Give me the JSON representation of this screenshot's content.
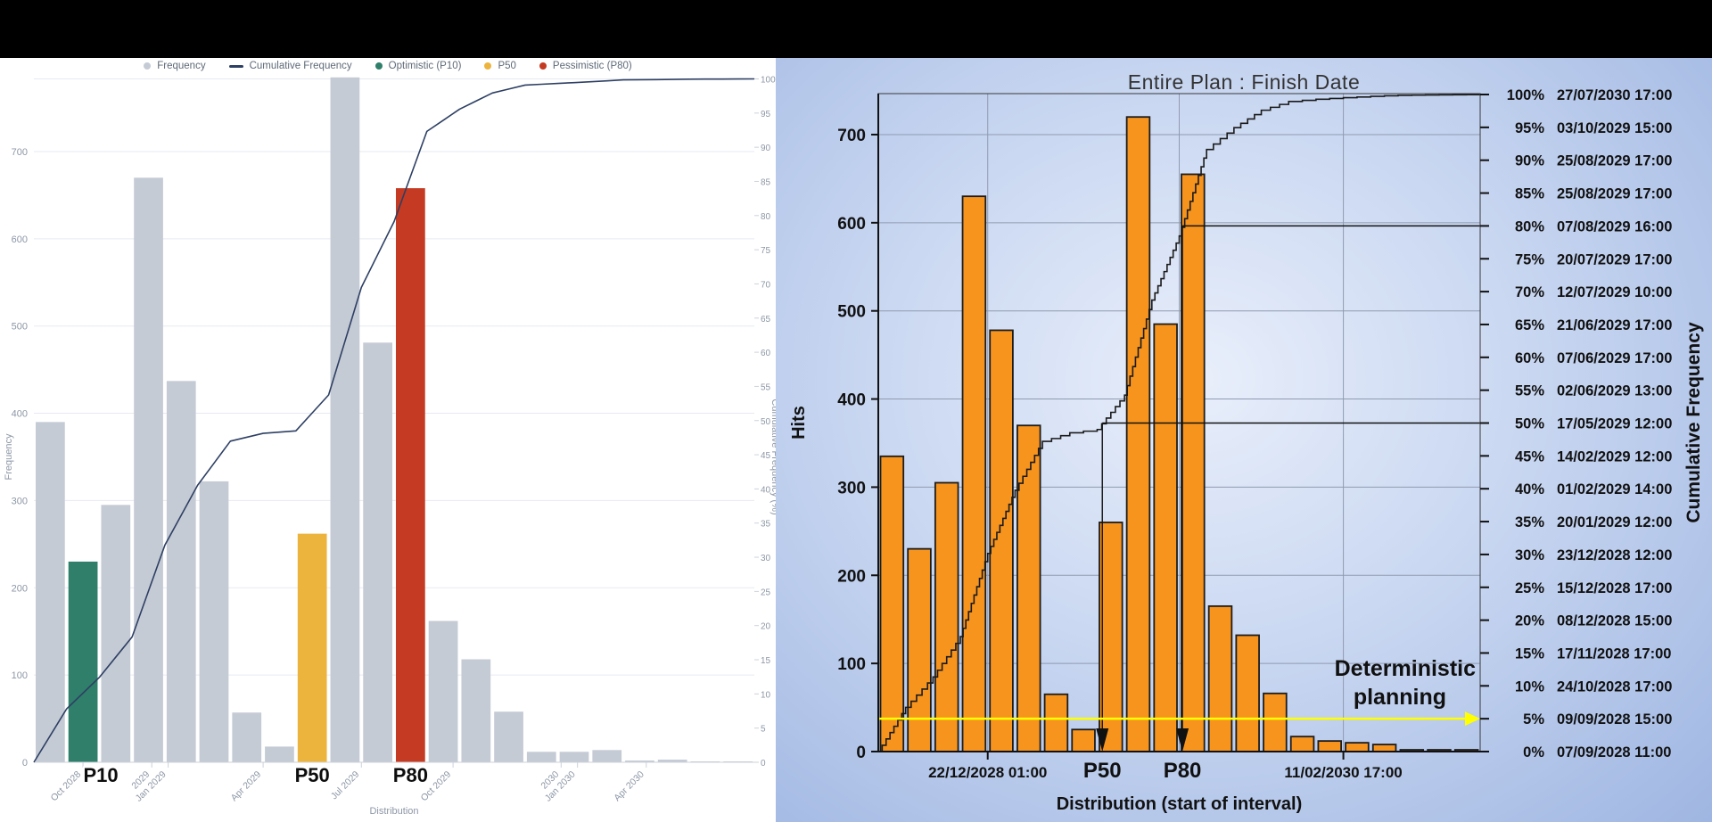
{
  "layout": {
    "top_bar_color": "#000000",
    "left_panel_bg": "#ffffff",
    "right_panel_bg_center": "#e9effb",
    "right_panel_bg_edge": "#9fb6e2"
  },
  "left_chart": {
    "legend": [
      {
        "label": "Frequency",
        "color": "#c5cbd5",
        "type": "dot"
      },
      {
        "label": "Cumulative Frequency",
        "color": "#2d3f63",
        "type": "line"
      },
      {
        "label": "Optimistic (P10)",
        "color": "#2f7f6b",
        "type": "dot"
      },
      {
        "label": "P50",
        "color": "#edb43d",
        "type": "dot"
      },
      {
        "label": "Pessimistic (P80)",
        "color": "#c53a22",
        "type": "dot"
      }
    ],
    "colors": {
      "grid": "#e7eaf0",
      "axis_text": "#8d97a6",
      "curve": "#2d3f63",
      "bar_default": "#c5cbd5",
      "p10": "#2f7f6b",
      "p50": "#edb43d",
      "p80": "#c53a22"
    }
  },
  "right_chart": {
    "title": "Entire Plan : Finish Date",
    "colors": {
      "bar": "#F7941E",
      "bar_stroke": "#1c1c1c",
      "curve": "#1a1a1a",
      "grid": "#8f9bb0",
      "accent_yellow": "#ffff00",
      "text": "#111111"
    }
  },
  "chart_data": [
    {
      "name": "left-distribution-histogram",
      "type": "bar",
      "title": "",
      "xlabel": "Distribution",
      "ylabel": "Frequency",
      "y2label": "Cumulative Frequency (%)",
      "ylim": [
        0,
        800
      ],
      "y_ticks": [
        0,
        100,
        200,
        300,
        400,
        500,
        600,
        700
      ],
      "y2_ticks": [
        0,
        5,
        10,
        15,
        20,
        25,
        30,
        35,
        40,
        45,
        50,
        55,
        60,
        65,
        70,
        75,
        80,
        85,
        90,
        95,
        100
      ],
      "values": [
        390,
        230,
        295,
        670,
        437,
        322,
        57,
        18,
        262,
        785,
        481,
        658,
        162,
        118,
        58,
        12,
        12,
        14,
        2,
        3,
        1,
        1
      ],
      "special_bars": [
        {
          "index": 1,
          "label": "P10",
          "color": "#2f7f6b"
        },
        {
          "index": 8,
          "label": "P50",
          "color": "#edb43d"
        },
        {
          "index": 11,
          "label": "P80",
          "color": "#c53a22"
        }
      ],
      "x_ticks": [
        {
          "pos": 1.5,
          "label": "Oct 2028"
        },
        {
          "pos": 3.6,
          "label": "2029"
        },
        {
          "pos": 4.1,
          "label": "Jan 2029"
        },
        {
          "pos": 7.0,
          "label": "Apr 2029"
        },
        {
          "pos": 10.0,
          "label": "Jul 2029"
        },
        {
          "pos": 12.8,
          "label": "Oct 2029"
        },
        {
          "pos": 16.1,
          "label": "2030"
        },
        {
          "pos": 16.6,
          "label": "Jan 2030"
        },
        {
          "pos": 18.7,
          "label": "Apr 2030"
        }
      ],
      "series": [
        {
          "name": "Frequency",
          "kind": "bars"
        },
        {
          "name": "Cumulative Frequency",
          "kind": "cumulative-percent-line"
        }
      ]
    },
    {
      "name": "entire-plan-finish-date",
      "type": "bar",
      "title": "Entire Plan : Finish Date",
      "xlabel": "Distribution (start of interval)",
      "ylabel": "Hits",
      "y2label": "Cumulative Frequency",
      "ylim": [
        0,
        780
      ],
      "y_ticks": [
        0,
        100,
        200,
        300,
        400,
        500,
        600,
        700
      ],
      "values": [
        335,
        230,
        305,
        630,
        478,
        370,
        65,
        25,
        260,
        720,
        485,
        655,
        165,
        132,
        66,
        17,
        12,
        10,
        8,
        2,
        2,
        2
      ],
      "x_ticks": [
        {
          "pos": 4.0,
          "label": "22/12/2028 01:00"
        },
        {
          "pos": 17.0,
          "label": "11/02/2030 17:00"
        }
      ],
      "percent_labels": [
        {
          "pct": 0,
          "date": "07/09/2028 11:00"
        },
        {
          "pct": 5,
          "date": "09/09/2028 15:00"
        },
        {
          "pct": 10,
          "date": "24/10/2028 17:00"
        },
        {
          "pct": 15,
          "date": "17/11/2028 17:00"
        },
        {
          "pct": 20,
          "date": "08/12/2028 15:00"
        },
        {
          "pct": 25,
          "date": "15/12/2028 17:00"
        },
        {
          "pct": 30,
          "date": "23/12/2028 12:00"
        },
        {
          "pct": 35,
          "date": "20/01/2029 12:00"
        },
        {
          "pct": 40,
          "date": "01/02/2029 14:00"
        },
        {
          "pct": 45,
          "date": "14/02/2029 12:00"
        },
        {
          "pct": 50,
          "date": "17/05/2029 12:00"
        },
        {
          "pct": 55,
          "date": "02/06/2029 13:00"
        },
        {
          "pct": 60,
          "date": "07/06/2029 17:00"
        },
        {
          "pct": 65,
          "date": "21/06/2029 17:00"
        },
        {
          "pct": 70,
          "date": "12/07/2029 10:00"
        },
        {
          "pct": 75,
          "date": "20/07/2029 17:00"
        },
        {
          "pct": 80,
          "date": "07/08/2029 16:00"
        },
        {
          "pct": 85,
          "date": "25/08/2029 17:00"
        },
        {
          "pct": 90,
          "date": "25/08/2029 17:00"
        },
        {
          "pct": 95,
          "date": "03/10/2029 15:00"
        },
        {
          "pct": 100,
          "date": "27/07/2030 17:00"
        }
      ],
      "p_markers": [
        {
          "label": "P50",
          "pct": 50
        },
        {
          "label": "P80",
          "pct": 80
        }
      ],
      "deterministic": {
        "line1": "Deterministic",
        "line2": "planning",
        "pct": 5
      },
      "series": [
        {
          "name": "Hits",
          "kind": "bars"
        },
        {
          "name": "Cumulative Frequency",
          "kind": "cumulative-percent-staircase"
        }
      ]
    }
  ]
}
